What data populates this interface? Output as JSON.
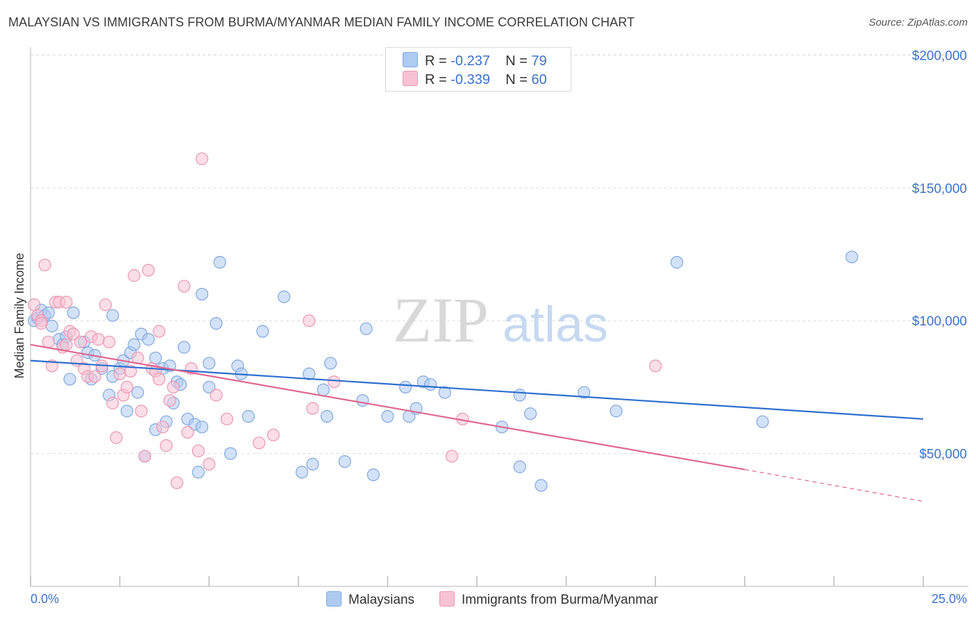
{
  "header": {
    "title": "MALAYSIAN VS IMMIGRANTS FROM BURMA/MYANMAR MEDIAN FAMILY INCOME CORRELATION CHART",
    "source": "Source: ZipAtlas.com"
  },
  "watermark": {
    "zip": "ZIP",
    "atlas": "atlas"
  },
  "legend_top": [
    {
      "r_label": "R =",
      "r_value": "-0.237",
      "n_label": "N =",
      "n_value": "79",
      "color": "#aecbf2",
      "border": "#7fa8e0"
    },
    {
      "r_label": "R =",
      "r_value": "-0.339",
      "n_label": "N =",
      "n_value": "60",
      "color": "#f7c3d4",
      "border": "#eb96b2"
    }
  ],
  "legend_bottom": [
    {
      "label": "Malaysians",
      "color": "#aecbf2",
      "border": "#7fa8e0"
    },
    {
      "label": "Immigrants from Burma/Myanmar",
      "color": "#f7c3d4",
      "border": "#eb96b2"
    }
  ],
  "chart_data": {
    "type": "scatter",
    "title": "MALAYSIAN VS IMMIGRANTS FROM BURMA/MYANMAR MEDIAN FAMILY INCOME CORRELATION CHART",
    "xlabel": "",
    "ylabel": "Median Family Income",
    "xlim": [
      0,
      25
    ],
    "ylim": [
      0,
      210000
    ],
    "x_tick_labels": [
      {
        "value": 0,
        "label": "0.0%"
      },
      {
        "value": 25,
        "label": "25.0%"
      }
    ],
    "y_tick_labels": [
      {
        "value": 50000,
        "label": "$50,000"
      },
      {
        "value": 100000,
        "label": "$100,000"
      },
      {
        "value": 150000,
        "label": "$150,000"
      },
      {
        "value": 200000,
        "label": "$200,000"
      }
    ],
    "series": [
      {
        "name": "Malaysians",
        "color": "#7fa8e0",
        "fill": "#aecbf2",
        "trend_color": "#2b6fcf",
        "trend": {
          "x0": 0,
          "y0": 85000,
          "x1": 25,
          "y1": 63000
        },
        "points": [
          [
            0.1,
            100000
          ],
          [
            0.2,
            101000
          ],
          [
            0.3,
            104000
          ],
          [
            0.4,
            102000
          ],
          [
            0.5,
            103000
          ],
          [
            0.6,
            98000
          ],
          [
            0.8,
            93000
          ],
          [
            0.9,
            91000
          ],
          [
            1.0,
            94000
          ],
          [
            1.1,
            78000
          ],
          [
            1.2,
            103000
          ],
          [
            1.5,
            92000
          ],
          [
            1.6,
            88000
          ],
          [
            1.7,
            78000
          ],
          [
            1.8,
            87000
          ],
          [
            2.0,
            82000
          ],
          [
            2.2,
            72000
          ],
          [
            2.3,
            79000
          ],
          [
            2.3,
            102000
          ],
          [
            2.5,
            82000
          ],
          [
            2.6,
            85000
          ],
          [
            2.7,
            66000
          ],
          [
            2.8,
            88000
          ],
          [
            2.9,
            91000
          ],
          [
            3.0,
            73000
          ],
          [
            3.1,
            95000
          ],
          [
            3.2,
            49000
          ],
          [
            3.3,
            93000
          ],
          [
            3.5,
            59000
          ],
          [
            3.5,
            86000
          ],
          [
            3.7,
            82000
          ],
          [
            3.8,
            62000
          ],
          [
            3.9,
            83000
          ],
          [
            4.0,
            69000
          ],
          [
            4.1,
            77000
          ],
          [
            4.2,
            76000
          ],
          [
            4.3,
            90000
          ],
          [
            4.4,
            63000
          ],
          [
            4.6,
            61000
          ],
          [
            4.7,
            43000
          ],
          [
            4.8,
            60000
          ],
          [
            4.8,
            110000
          ],
          [
            5.0,
            75000
          ],
          [
            5.0,
            84000
          ],
          [
            5.2,
            99000
          ],
          [
            5.3,
            122000
          ],
          [
            5.6,
            50000
          ],
          [
            5.8,
            83000
          ],
          [
            5.9,
            80000
          ],
          [
            6.1,
            64000
          ],
          [
            6.5,
            96000
          ],
          [
            7.1,
            109000
          ],
          [
            7.6,
            43000
          ],
          [
            7.8,
            80000
          ],
          [
            7.9,
            46000
          ],
          [
            8.2,
            74000
          ],
          [
            8.3,
            64000
          ],
          [
            8.4,
            84000
          ],
          [
            8.8,
            47000
          ],
          [
            9.3,
            70000
          ],
          [
            9.4,
            97000
          ],
          [
            9.6,
            42000
          ],
          [
            10.0,
            64000
          ],
          [
            10.5,
            75000
          ],
          [
            10.6,
            64000
          ],
          [
            10.8,
            67000
          ],
          [
            11.0,
            77000
          ],
          [
            11.2,
            76000
          ],
          [
            11.6,
            73000
          ],
          [
            13.2,
            60000
          ],
          [
            13.7,
            45000
          ],
          [
            13.7,
            72000
          ],
          [
            14.0,
            65000
          ],
          [
            14.3,
            38000
          ],
          [
            15.5,
            73000
          ],
          [
            16.4,
            66000
          ],
          [
            18.1,
            122000
          ],
          [
            20.5,
            62000
          ],
          [
            23.0,
            124000
          ]
        ]
      },
      {
        "name": "Immigrants from Burma/Myanmar",
        "color": "#eb96b2",
        "fill": "#f7c3d4",
        "trend_color": "#e0668f",
        "trend": {
          "x0": 0,
          "y0": 91000,
          "x1": 20,
          "y1": 44000
        },
        "trend_dashed": {
          "x0": 20,
          "y0": 44000,
          "x1": 25,
          "y1": 32000
        },
        "points": [
          [
            0.1,
            106000
          ],
          [
            0.2,
            102000
          ],
          [
            0.3,
            100000
          ],
          [
            0.4,
            121000
          ],
          [
            0.5,
            92000
          ],
          [
            0.6,
            83000
          ],
          [
            0.7,
            107000
          ],
          [
            0.8,
            107000
          ],
          [
            0.9,
            90000
          ],
          [
            1.0,
            91000
          ],
          [
            1.1,
            96000
          ],
          [
            1.2,
            95000
          ],
          [
            1.3,
            85000
          ],
          [
            1.4,
            92000
          ],
          [
            1.5,
            82000
          ],
          [
            1.6,
            79000
          ],
          [
            1.7,
            94000
          ],
          [
            1.8,
            79000
          ],
          [
            1.9,
            93000
          ],
          [
            2.0,
            83000
          ],
          [
            2.1,
            106000
          ],
          [
            2.2,
            92000
          ],
          [
            2.3,
            69000
          ],
          [
            2.4,
            56000
          ],
          [
            2.5,
            80000
          ],
          [
            2.6,
            72000
          ],
          [
            2.7,
            75000
          ],
          [
            2.8,
            81000
          ],
          [
            2.9,
            117000
          ],
          [
            3.0,
            86000
          ],
          [
            3.1,
            66000
          ],
          [
            3.2,
            49000
          ],
          [
            3.3,
            119000
          ],
          [
            3.4,
            82000
          ],
          [
            3.5,
            81000
          ],
          [
            3.6,
            96000
          ],
          [
            3.6,
            78000
          ],
          [
            3.7,
            60000
          ],
          [
            3.8,
            53000
          ],
          [
            3.9,
            70000
          ],
          [
            4.0,
            75000
          ],
          [
            4.1,
            39000
          ],
          [
            4.3,
            113000
          ],
          [
            4.4,
            58000
          ],
          [
            4.5,
            82000
          ],
          [
            4.7,
            51000
          ],
          [
            4.8,
            161000
          ],
          [
            5.0,
            46000
          ],
          [
            5.2,
            72000
          ],
          [
            5.5,
            63000
          ],
          [
            6.4,
            54000
          ],
          [
            6.8,
            57000
          ],
          [
            7.8,
            100000
          ],
          [
            7.9,
            67000
          ],
          [
            8.5,
            77000
          ],
          [
            11.8,
            49000
          ],
          [
            12.1,
            63000
          ],
          [
            17.5,
            83000
          ],
          [
            1.0,
            107000
          ],
          [
            0.3,
            99000
          ]
        ]
      }
    ]
  }
}
